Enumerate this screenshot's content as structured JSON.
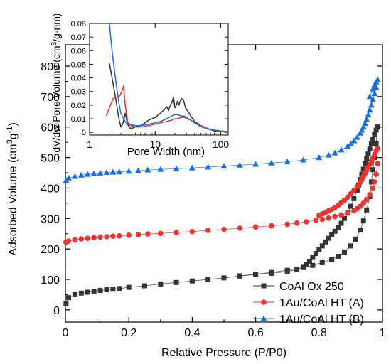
{
  "chart_data": [
    {
      "type": "scatter",
      "xlabel": "Relative Pressure (P/P0)",
      "ylabel": "Adsorbed Volume (cm³g⁻¹)",
      "ylabel_parts": [
        "Adsorbed Volume (cm",
        "3",
        "g",
        "-1",
        ")"
      ],
      "xlim": [
        0,
        1
      ],
      "ylim": [
        -40,
        870
      ],
      "xticks": [
        0,
        0.2,
        0.4,
        0.6,
        0.8,
        1.0
      ],
      "xtick_labels": [
        "0",
        "0.2",
        "0.4",
        "0.6",
        "0.8",
        "1"
      ],
      "yticks": [
        0,
        100,
        200,
        300,
        400,
        500,
        600,
        700,
        800
      ],
      "ytick_labels": [
        "0",
        "100",
        "200",
        "300",
        "400",
        "500",
        "600",
        "700",
        "800"
      ],
      "grid": false,
      "legend_position": "bottom-right",
      "series": [
        {
          "name": "CoAl Ox 250",
          "color": "#333333",
          "marker": "square",
          "adsorption": {
            "x": [
              0.002,
              0.01,
              0.03,
              0.05,
              0.07,
              0.09,
              0.11,
              0.13,
              0.15,
              0.17,
              0.2,
              0.25,
              0.3,
              0.35,
              0.4,
              0.45,
              0.5,
              0.55,
              0.6,
              0.65,
              0.7,
              0.75,
              0.78,
              0.81,
              0.84,
              0.86,
              0.88,
              0.9,
              0.915,
              0.93,
              0.94,
              0.95,
              0.96,
              0.965,
              0.97,
              0.975,
              0.98,
              0.985
            ],
            "y": [
              20,
              40,
              50,
              55,
              58,
              61,
              64,
              66,
              68,
              70,
              74,
              79,
              85,
              90,
              95,
              100,
              105,
              111,
              117,
              123,
              130,
              139,
              146,
              155,
              166,
              176,
              190,
              210,
              232,
              262,
              292,
              328,
              372,
              420,
              460,
              500,
              545,
              600
            ]
          },
          "desorption": {
            "x": [
              0.985,
              0.98,
              0.975,
              0.97,
              0.965,
              0.96,
              0.955,
              0.95,
              0.945,
              0.94,
              0.935,
              0.93,
              0.925,
              0.92,
              0.91,
              0.9,
              0.89,
              0.88,
              0.87,
              0.86,
              0.85,
              0.84,
              0.83,
              0.82,
              0.81,
              0.8,
              0.79,
              0.78,
              0.77,
              0.76,
              0.75,
              0.73,
              0.7,
              0.65,
              0.6,
              0.55
            ],
            "y": [
              600,
              590,
              575,
              560,
              545,
              528,
              512,
              496,
              480,
              462,
              445,
              428,
              410,
              392,
              365,
              340,
              318,
              300,
              284,
              270,
              258,
              246,
              235,
              223,
              210,
              197,
              185,
              172,
              158,
              148,
              140,
              132,
              126,
              120,
              116,
              112
            ]
          }
        },
        {
          "name": "1Au/CoAl HT (A)",
          "color": "#ee3333",
          "marker": "circle",
          "adsorption": {
            "x": [
              0.002,
              0.01,
              0.03,
              0.05,
              0.07,
              0.09,
              0.11,
              0.13,
              0.15,
              0.17,
              0.2,
              0.23,
              0.26,
              0.3,
              0.35,
              0.4,
              0.45,
              0.5,
              0.55,
              0.6,
              0.65,
              0.7,
              0.73,
              0.76,
              0.79,
              0.81,
              0.83,
              0.85,
              0.87,
              0.89,
              0.91,
              0.92,
              0.93,
              0.94,
              0.95,
              0.96,
              0.97,
              0.975,
              0.98,
              0.985
            ],
            "y": [
              222,
              226,
              230,
              233,
              235,
              237,
              239,
              240,
              242,
              243,
              245,
              247,
              249,
              251,
              254,
              257,
              261,
              264,
              268,
              272,
              276,
              281,
              285,
              289,
              294,
              297,
              301,
              306,
              311,
              318,
              326,
              332,
              340,
              350,
              362,
              378,
              400,
              420,
              445,
              480
            ]
          },
          "desorption": {
            "x": [
              0.985,
              0.98,
              0.975,
              0.97,
              0.965,
              0.96,
              0.955,
              0.95,
              0.945,
              0.94,
              0.935,
              0.93,
              0.92,
              0.91,
              0.9,
              0.89,
              0.88,
              0.87,
              0.86,
              0.85,
              0.84,
              0.83,
              0.82,
              0.81,
              0.8
            ],
            "y": [
              530,
              522,
              510,
              498,
              488,
              478,
              468,
              458,
              448,
              438,
              428,
              418,
              405,
              392,
              381,
              370,
              360,
              352,
              343,
              336,
              330,
              325,
              319,
              315,
              310
            ]
          }
        },
        {
          "name": "1Au/CoAl HT (B)",
          "color": "#1a6fe0",
          "marker": "triangle",
          "adsorption": {
            "x": [
              0.002,
              0.01,
              0.03,
              0.05,
              0.07,
              0.09,
              0.11,
              0.13,
              0.15,
              0.17,
              0.2,
              0.23,
              0.26,
              0.3,
              0.35,
              0.4,
              0.45,
              0.5,
              0.55,
              0.6,
              0.65,
              0.7,
              0.75,
              0.8,
              0.83,
              0.85,
              0.87,
              0.89,
              0.9,
              0.91,
              0.92,
              0.93,
              0.935,
              0.94,
              0.945,
              0.95,
              0.955,
              0.96,
              0.965,
              0.97,
              0.975,
              0.98
            ],
            "y": [
              425,
              433,
              438,
              442,
              445,
              447,
              449,
              451,
              452,
              453,
              455,
              457,
              459,
              461,
              463,
              466,
              469,
              472,
              475,
              478,
              482,
              486,
              492,
              500,
              508,
              515,
              525,
              537,
              545,
              555,
              566,
              580,
              590,
              600,
              612,
              625,
              640,
              656,
              672,
              690,
              710,
              730
            ]
          },
          "desorption": {
            "x": [
              0.985,
              0.98,
              0.975,
              0.97,
              0.96
            ],
            "y": [
              755,
              748,
              738,
              725,
              700
            ]
          }
        }
      ],
      "inset": {
        "type": "line",
        "xlabel": "Pore Width (nm)",
        "ylabel": "dV/dw Pore Volume (cm³/g·nm)",
        "ylabel_parts": [
          "dV/dw Pore Volume (cm",
          "3",
          "/g·nm)"
        ],
        "xscale": "log",
        "xlim": [
          1,
          130
        ],
        "ylim": [
          -0.002,
          0.08
        ],
        "xticks": [
          1,
          10,
          100
        ],
        "xtick_labels": [
          "1",
          "10",
          "100"
        ],
        "yticks": [
          0,
          0.01,
          0.02,
          0.03,
          0.04,
          0.05,
          0.06,
          0.07,
          0.08
        ],
        "ytick_labels": [
          "0",
          "0.01",
          "0.02",
          "0.03",
          "0.04",
          "0.05",
          "0.06",
          "0.07",
          "0.08"
        ],
        "series": [
          {
            "color": "#333333",
            "x": [
              2.0,
              2.2,
              2.5,
              2.8,
              3.0,
              3.2,
              3.5,
              3.8,
              4.1,
              4.5,
              5.0,
              6.0,
              7.0,
              8.0,
              10.0,
              12.0,
              14.0,
              15.0,
              16.0,
              17.0,
              18.0,
              19.0,
              20.0,
              21.0,
              22.0,
              23.0,
              25.0,
              27.0,
              29.0,
              31.0,
              35.0,
              40.0,
              50.0,
              60.0,
              80.0,
              100.0,
              130.0
            ],
            "y": [
              0.051,
              0.04,
              0.025,
              0.01,
              0.004,
              0.006,
              0.014,
              0.006,
              0.003,
              0.003,
              0.004,
              0.005,
              0.007,
              0.009,
              0.011,
              0.014,
              0.017,
              0.019,
              0.016,
              0.02,
              0.022,
              0.026,
              0.018,
              0.02,
              0.023,
              0.02,
              0.025,
              0.024,
              0.018,
              0.016,
              0.012,
              0.008,
              0.005,
              0.003,
              0.001,
              0.0005,
              0.0003
            ]
          },
          {
            "color": "#ee3333",
            "x": [
              1.8,
              2.0,
              2.3,
              2.6,
              2.9,
              3.1,
              3.3,
              3.5,
              3.8,
              4.2,
              5.0,
              6.0,
              8.0,
              10.0,
              12.0,
              15.0,
              18.0,
              20.0,
              22.0,
              25.0,
              28.0,
              30.0,
              35.0,
              40.0,
              50.0,
              70.0,
              100.0,
              130.0
            ],
            "y": [
              0.012,
              0.018,
              0.025,
              0.026,
              0.027,
              0.03,
              0.034,
              0.02,
              0.008,
              0.005,
              0.004,
              0.004,
              0.005,
              0.006,
              0.007,
              0.008,
              0.009,
              0.01,
              0.01,
              0.011,
              0.011,
              0.01,
              0.009,
              0.007,
              0.005,
              0.002,
              0.001,
              0.0005
            ]
          },
          {
            "color": "#1a6fe0",
            "x": [
              2.0,
              2.2,
              2.4,
              2.6,
              2.8,
              3.0,
              3.3,
              3.6,
              4.0,
              5.0,
              6.0,
              8.0,
              10.0,
              12.0,
              15.0,
              18.0,
              20.0,
              22.0,
              25.0,
              28.0,
              30.0,
              35.0,
              40.0,
              50.0,
              70.0,
              100.0,
              130.0
            ],
            "y": [
              0.08,
              0.06,
              0.045,
              0.032,
              0.022,
              0.014,
              0.01,
              0.007,
              0.006,
              0.005,
              0.005,
              0.006,
              0.007,
              0.008,
              0.01,
              0.012,
              0.013,
              0.013,
              0.012,
              0.012,
              0.011,
              0.009,
              0.007,
              0.004,
              0.002,
              0.001,
              0.0005
            ]
          }
        ]
      }
    }
  ]
}
